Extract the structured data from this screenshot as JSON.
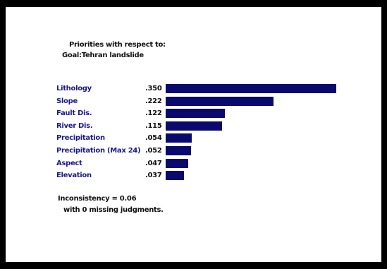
{
  "header": {
    "line1": "Priorities with respect to:",
    "line2": "Goal:Tehran landslide"
  },
  "chart_data": {
    "type": "bar",
    "orientation": "horizontal",
    "categories": [
      "Lithology",
      "Slope",
      "Fault Dis.",
      "River Dis.",
      "Precipitation",
      "Precipitation (Max 24)",
      "Aspect",
      "Elevation"
    ],
    "values": [
      0.35,
      0.222,
      0.122,
      0.115,
      0.054,
      0.052,
      0.047,
      0.037
    ],
    "value_labels": [
      ".350",
      ".222",
      ".122",
      ".115",
      ".054",
      ".052",
      ".047",
      ".037"
    ],
    "xlim": [
      0,
      0.35
    ],
    "bar_color": "#0a0a6e",
    "label_color": "#1a1a8c"
  },
  "footer": {
    "inconsistency": "Inconsistency = 0.06",
    "missing": "with 0  missing judgments."
  }
}
